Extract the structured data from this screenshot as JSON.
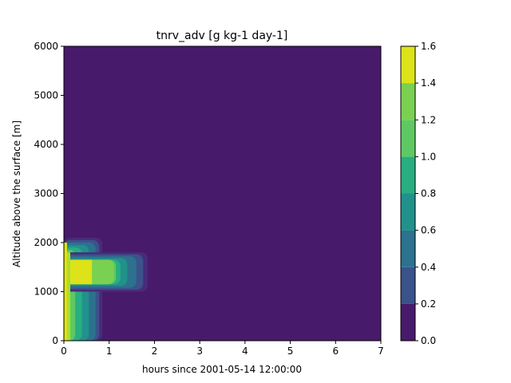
{
  "chart_data": {
    "type": "heatmap",
    "title": "tnrv_adv [g kg-1 day-1]",
    "xlabel": "hours since 2001-05-14 12:00:00",
    "ylabel": "Altitude above the surface [m]",
    "xlim": [
      0,
      7
    ],
    "ylim": [
      0,
      6000
    ],
    "x_ticks": [
      "0",
      "1",
      "2",
      "3",
      "4",
      "5",
      "6",
      "7"
    ],
    "y_ticks": [
      "0",
      "1000",
      "2000",
      "3000",
      "4000",
      "5000",
      "6000"
    ],
    "colorbar": {
      "levels": [
        0.0,
        0.2,
        0.4,
        0.6,
        0.8,
        1.0,
        1.2,
        1.4,
        1.6
      ],
      "tick_labels": [
        "0.0",
        "0.2",
        "0.4",
        "0.6",
        "0.8",
        "1.0",
        "1.2",
        "1.4",
        "1.6"
      ],
      "colors": [
        "#440154",
        "#482878",
        "#3e4989",
        "#31688e",
        "#26828e",
        "#1f9e89",
        "#35b779",
        "#6ece58",
        "#b5de2b",
        "#fde725"
      ]
    },
    "background_level_color": "#481a6c",
    "field": {
      "description_units": "hours x metres",
      "contour_bands": [
        {
          "level": "0.0-0.2",
          "color": "#472c7a",
          "x": [
            0,
            0.85
          ],
          "y": [
            0,
            2100
          ]
        },
        {
          "level": "0.2-0.4",
          "color": "#3b528b",
          "x": [
            0,
            0.78
          ],
          "y": [
            0,
            2050
          ]
        },
        {
          "level": "0.4-0.6",
          "color": "#2c728e",
          "x": [
            0,
            0.7
          ],
          "y": [
            0,
            2000
          ]
        },
        {
          "level": "0.6-0.8",
          "color": "#21918c",
          "x": [
            0,
            0.55
          ],
          "y": [
            0,
            1950
          ]
        },
        {
          "level": "0.8-1.0",
          "color": "#28ae80",
          "x": [
            0,
            0.4
          ],
          "y": [
            0,
            1900
          ]
        },
        {
          "level": "1.0-1.2",
          "color": "#5ec962",
          "x": [
            0,
            0.25
          ],
          "y": [
            0,
            1850
          ]
        },
        {
          "level": "1.2-1.4",
          "color": "#addc30",
          "x": [
            0,
            0.1
          ],
          "y": [
            0,
            1800
          ]
        }
      ],
      "shelf_bands": [
        {
          "color": "#472c7a",
          "x": [
            0,
            1.85
          ],
          "y": [
            1000,
            1800
          ]
        },
        {
          "color": "#3b528b",
          "x": [
            0,
            1.75
          ],
          "y": [
            1040,
            1760
          ]
        },
        {
          "color": "#2c728e",
          "x": [
            0,
            1.6
          ],
          "y": [
            1080,
            1720
          ]
        },
        {
          "color": "#21918c",
          "x": [
            0,
            1.4
          ],
          "y": [
            1120,
            1680
          ]
        },
        {
          "color": "#28ae80",
          "x": [
            0,
            1.25
          ],
          "y": [
            1150,
            1650
          ]
        },
        {
          "color": "#5ec962",
          "x": [
            0,
            1.15
          ],
          "y": [
            1150,
            1650
          ]
        },
        {
          "color": "#7ad151",
          "x": [
            0,
            1.1
          ],
          "y": [
            1150,
            1650
          ]
        }
      ],
      "core": {
        "color": "#dde318",
        "x": [
          0,
          0.62
        ],
        "y": [
          1150,
          1650
        ]
      },
      "core_tall": {
        "color": "#dde318",
        "x": [
          0,
          0.05
        ],
        "y": [
          0,
          2000
        ]
      }
    }
  }
}
